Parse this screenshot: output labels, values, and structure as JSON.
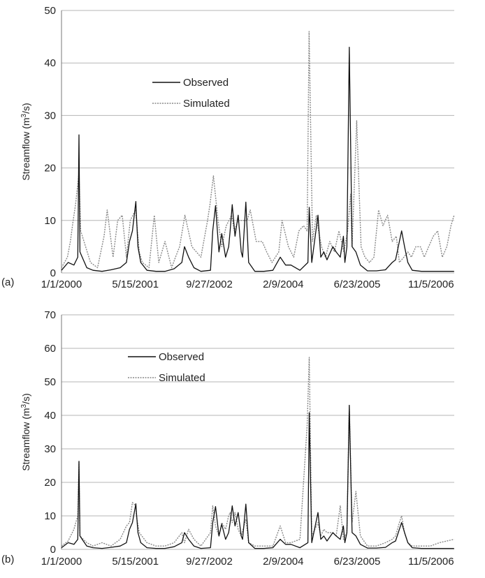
{
  "chart_data": [
    {
      "panel_label": "(a)",
      "type": "line",
      "ylabel_parts": [
        "Streamflow (m",
        "3",
        "/s)"
      ],
      "ylim": [
        0,
        50
      ],
      "yticks": [
        0,
        10,
        20,
        30,
        40,
        50
      ],
      "x_range": [
        "2000-01-01",
        "2007-04-11"
      ],
      "x_tick_dates": [
        "2000-01-01",
        "2001-05-15",
        "2002-09-27",
        "2004-02-09",
        "2005-06-23",
        "2006-11-05"
      ],
      "x_tick_labels": [
        "1/1/2000",
        "5/15/2001",
        "9/27/2002",
        "2/9/2004",
        "6/23/2005",
        "11/5/2006"
      ],
      "grid": "horizontal",
      "legend_position": "upper-left",
      "series": [
        {
          "name": "Observed",
          "style": "solid",
          "color": "#111111",
          "x": [
            "2000-01-01",
            "2000-02-15",
            "2000-03-25",
            "2000-04-20",
            "2000-04-28",
            "2000-05-05",
            "2000-05-20",
            "2000-06-20",
            "2000-08-01",
            "2000-10-01",
            "2000-12-01",
            "2001-02-01",
            "2001-03-15",
            "2001-04-05",
            "2001-04-25",
            "2001-05-18",
            "2001-05-22",
            "2001-06-01",
            "2001-06-20",
            "2001-08-01",
            "2001-10-01",
            "2001-12-01",
            "2002-02-01",
            "2002-03-25",
            "2002-04-12",
            "2002-05-10",
            "2002-06-15",
            "2002-08-01",
            "2002-10-05",
            "2002-10-20",
            "2002-11-08",
            "2002-12-01",
            "2002-12-20",
            "2003-01-15",
            "2003-02-05",
            "2003-02-15",
            "2003-03-01",
            "2003-03-20",
            "2003-04-10",
            "2003-05-01",
            "2003-05-10",
            "2003-06-01",
            "2003-06-20",
            "2003-08-01",
            "2003-10-01",
            "2003-12-01",
            "2004-01-20",
            "2004-02-25",
            "2004-04-01",
            "2004-06-01",
            "2004-07-25",
            "2004-08-03",
            "2004-08-20",
            "2004-10-01",
            "2004-10-20",
            "2004-11-10",
            "2004-12-01",
            "2005-01-10",
            "2005-02-01",
            "2005-03-01",
            "2005-03-22",
            "2005-04-01",
            "2005-04-15",
            "2005-05-01",
            "2005-05-20",
            "2005-06-15",
            "2005-07-15",
            "2005-09-01",
            "2005-11-01",
            "2006-01-01",
            "2006-02-15",
            "2006-03-10",
            "2006-04-05",
            "2006-04-20",
            "2006-05-10",
            "2006-06-01",
            "2006-07-01",
            "2006-09-01",
            "2006-11-01",
            "2007-01-01",
            "2007-04-10"
          ],
          "values": [
            0.5,
            2,
            1.5,
            3,
            26.3,
            4,
            3,
            1,
            0.5,
            0.3,
            0.6,
            1,
            2,
            6,
            8,
            13.6,
            11,
            5,
            2,
            0.5,
            0.3,
            0.3,
            0.8,
            2,
            5,
            3,
            1,
            0.3,
            0.5,
            8,
            12.8,
            4,
            7.5,
            3,
            5,
            8,
            13,
            7,
            11,
            4,
            3,
            13.5,
            2,
            0.3,
            0.3,
            0.5,
            3,
            1.5,
            1.5,
            0.5,
            2,
            12.5,
            2,
            11,
            3,
            4,
            2.5,
            5,
            4,
            3,
            7,
            2,
            5,
            43,
            5,
            4,
            1.5,
            0.4,
            0.4,
            0.6,
            2,
            2.5,
            6,
            8,
            5,
            2,
            0.5,
            0.3,
            0.3,
            0.3,
            0.3
          ]
        },
        {
          "name": "Simulated",
          "style": "dotted",
          "color": "#888888",
          "x": [
            "2000-01-01",
            "2000-02-10",
            "2000-03-01",
            "2000-03-20",
            "2000-04-05",
            "2000-04-28",
            "2000-05-10",
            "2000-07-15",
            "2000-09-01",
            "2000-10-15",
            "2000-11-05",
            "2000-12-15",
            "2001-01-15",
            "2001-02-15",
            "2001-03-15",
            "2001-04-10",
            "2001-05-16",
            "2001-06-10",
            "2001-07-01",
            "2001-08-15",
            "2001-09-20",
            "2001-10-20",
            "2001-12-01",
            "2002-01-15",
            "2002-02-10",
            "2002-03-10",
            "2002-04-15",
            "2002-06-01",
            "2002-08-01",
            "2002-09-15",
            "2002-10-01",
            "2002-10-25",
            "2002-11-25",
            "2002-12-20",
            "2003-01-20",
            "2003-02-25",
            "2003-03-15",
            "2003-04-10",
            "2003-05-10",
            "2003-06-10",
            "2003-07-01",
            "2003-08-10",
            "2003-09-20",
            "2003-10-20",
            "2003-11-25",
            "2004-01-10",
            "2004-02-01",
            "2004-03-15",
            "2004-04-20",
            "2004-05-25",
            "2004-06-25",
            "2004-07-20",
            "2004-08-02",
            "2004-08-25",
            "2004-09-20",
            "2004-10-05",
            "2004-10-25",
            "2004-11-20",
            "2004-12-20",
            "2005-01-20",
            "2005-02-20",
            "2005-03-25",
            "2005-04-20",
            "2005-05-10",
            "2005-05-20",
            "2005-06-20",
            "2005-07-20",
            "2005-08-15",
            "2005-09-15",
            "2005-10-15",
            "2005-11-15",
            "2005-12-15",
            "2006-01-15",
            "2006-02-15",
            "2006-03-15",
            "2006-04-05",
            "2006-05-05",
            "2006-06-01",
            "2006-06-25",
            "2006-07-25",
            "2006-08-25",
            "2006-09-20",
            "2006-10-20",
            "2006-11-20",
            "2006-12-20",
            "2007-01-20",
            "2007-02-20",
            "2007-03-20",
            "2007-04-10"
          ],
          "values": [
            1,
            3,
            6,
            10,
            13,
            19,
            8,
            2,
            1,
            7,
            12,
            3,
            10,
            11,
            3,
            10,
            12,
            4,
            2,
            1,
            11,
            2,
            6,
            1,
            3,
            5,
            11,
            5,
            3,
            10,
            13,
            18.5,
            10,
            5,
            9,
            11,
            8,
            10,
            10,
            10,
            12,
            6,
            6,
            4,
            2,
            4,
            10,
            5,
            3,
            8,
            9,
            8,
            46,
            6,
            11,
            8,
            5,
            3,
            6,
            4,
            8,
            4,
            8,
            15,
            5,
            29,
            5,
            3,
            2,
            3,
            12,
            9,
            11,
            6,
            7,
            2,
            3,
            4,
            3,
            5,
            5,
            3,
            5,
            7,
            8,
            3,
            5,
            9,
            11
          ]
        }
      ]
    },
    {
      "panel_label": "(b)",
      "type": "line",
      "ylabel_parts": [
        "Streamflow (m",
        "3",
        "/s)"
      ],
      "ylim": [
        0,
        70
      ],
      "yticks": [
        0,
        10,
        20,
        30,
        40,
        50,
        60,
        70
      ],
      "x_range": [
        "2000-01-01",
        "2007-04-11"
      ],
      "x_tick_dates": [
        "2000-01-01",
        "2001-05-15",
        "2002-09-27",
        "2004-02-09",
        "2005-06-23",
        "2006-11-05"
      ],
      "x_tick_labels": [
        "1/1/2000",
        "5/15/2001",
        "9/27/2002",
        "2/9/2004",
        "6/23/2005",
        "11/5/2006"
      ],
      "grid": "horizontal",
      "legend_position": "upper-left",
      "series": [
        {
          "name": "Observed",
          "style": "solid",
          "color": "#111111",
          "x": [
            "2000-01-01",
            "2000-02-15",
            "2000-03-25",
            "2000-04-20",
            "2000-04-28",
            "2000-05-05",
            "2000-05-20",
            "2000-06-20",
            "2000-08-01",
            "2000-10-01",
            "2000-12-01",
            "2001-02-01",
            "2001-03-15",
            "2001-04-05",
            "2001-04-25",
            "2001-05-18",
            "2001-05-22",
            "2001-06-01",
            "2001-06-20",
            "2001-08-01",
            "2001-10-01",
            "2001-12-01",
            "2002-02-01",
            "2002-03-25",
            "2002-04-12",
            "2002-05-10",
            "2002-06-15",
            "2002-08-01",
            "2002-10-05",
            "2002-10-20",
            "2002-11-08",
            "2002-12-01",
            "2002-12-20",
            "2003-01-15",
            "2003-02-05",
            "2003-02-15",
            "2003-03-01",
            "2003-03-20",
            "2003-04-10",
            "2003-05-01",
            "2003-05-10",
            "2003-06-01",
            "2003-06-20",
            "2003-08-01",
            "2003-10-01",
            "2003-12-01",
            "2004-01-20",
            "2004-02-25",
            "2004-04-01",
            "2004-06-01",
            "2004-07-25",
            "2004-08-03",
            "2004-08-20",
            "2004-10-01",
            "2004-10-20",
            "2004-11-10",
            "2004-12-01",
            "2005-01-10",
            "2005-02-01",
            "2005-03-01",
            "2005-03-22",
            "2005-04-01",
            "2005-04-15",
            "2005-05-01",
            "2005-05-20",
            "2005-06-15",
            "2005-07-15",
            "2005-09-01",
            "2005-11-01",
            "2006-01-01",
            "2006-02-15",
            "2006-03-10",
            "2006-04-05",
            "2006-04-20",
            "2006-05-10",
            "2006-06-01",
            "2006-07-01",
            "2006-09-01",
            "2006-11-01",
            "2007-01-01",
            "2007-04-10"
          ],
          "values": [
            0.5,
            2,
            1.5,
            3,
            26.3,
            4,
            3,
            1,
            0.5,
            0.3,
            0.6,
            1,
            2,
            6,
            8,
            13.6,
            11,
            5,
            2,
            0.5,
            0.3,
            0.3,
            0.8,
            2,
            5,
            3,
            1,
            0.3,
            0.5,
            8,
            12.8,
            4,
            7.5,
            3,
            5,
            8,
            13,
            7,
            11,
            4,
            3,
            13.5,
            2,
            0.3,
            0.3,
            0.5,
            3,
            1.5,
            1.5,
            0.5,
            2,
            40.8,
            2,
            11,
            3,
            4,
            2.5,
            5,
            4,
            3,
            7,
            2,
            5,
            43,
            5,
            4,
            1.5,
            0.4,
            0.4,
            0.6,
            2,
            2.5,
            6,
            8,
            5,
            2,
            0.5,
            0.3,
            0.3,
            0.3,
            0.3
          ]
        },
        {
          "name": "Simulated",
          "style": "dotted",
          "color": "#888888",
          "x": [
            "2000-01-01",
            "2000-02-15",
            "2000-03-25",
            "2000-04-20",
            "2000-04-28",
            "2000-05-05",
            "2000-06-20",
            "2000-08-01",
            "2000-10-01",
            "2000-12-01",
            "2001-02-01",
            "2001-03-15",
            "2001-04-05",
            "2001-04-25",
            "2001-05-18",
            "2001-05-22",
            "2001-06-10",
            "2001-08-01",
            "2001-10-01",
            "2001-12-01",
            "2002-02-01",
            "2002-03-25",
            "2002-04-12",
            "2002-05-10",
            "2002-06-15",
            "2002-08-01",
            "2002-10-05",
            "2002-10-20",
            "2002-11-08",
            "2002-12-01",
            "2002-12-20",
            "2003-01-15",
            "2003-02-05",
            "2003-02-15",
            "2003-03-01",
            "2003-03-20",
            "2003-04-10",
            "2003-05-01",
            "2003-06-01",
            "2003-06-20",
            "2003-08-01",
            "2003-10-01",
            "2003-12-01",
            "2004-01-20",
            "2004-02-25",
            "2004-04-01",
            "2004-06-01",
            "2004-07-20",
            "2004-08-03",
            "2004-08-20",
            "2004-10-01",
            "2004-10-20",
            "2004-11-10",
            "2004-12-01",
            "2005-01-10",
            "2005-02-01",
            "2005-03-01",
            "2005-03-22",
            "2005-04-15",
            "2005-05-01",
            "2005-05-20",
            "2005-06-15",
            "2005-07-15",
            "2005-09-01",
            "2005-11-01",
            "2006-01-01",
            "2006-02-15",
            "2006-03-10",
            "2006-04-05",
            "2006-04-20",
            "2006-05-10",
            "2006-06-01",
            "2006-07-01",
            "2006-09-01",
            "2006-11-01",
            "2007-01-01",
            "2007-04-10"
          ],
          "values": [
            1,
            2.5,
            6,
            10,
            26,
            4,
            2,
            1,
            2,
            1,
            3,
            7,
            8,
            14,
            13,
            10,
            5,
            2,
            1,
            1,
            2,
            5,
            2,
            6,
            3,
            1,
            5,
            13,
            7,
            4,
            8,
            6,
            10,
            11,
            8,
            11,
            6,
            4,
            9,
            2,
            1,
            1,
            1,
            7,
            2,
            2,
            3,
            37,
            57.3,
            4,
            8,
            4,
            6,
            5,
            5,
            4,
            13,
            3,
            5,
            43,
            8,
            17.3,
            4,
            1,
            1,
            2,
            3,
            4,
            8,
            10,
            5,
            2,
            1,
            1,
            1,
            2,
            3
          ]
        }
      ]
    }
  ]
}
